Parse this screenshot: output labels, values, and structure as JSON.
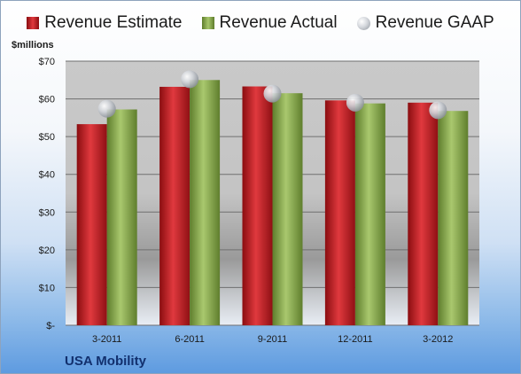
{
  "chart_data": {
    "type": "bar",
    "ylabel": "$millions",
    "categories": [
      "3-2011",
      "6-2011",
      "9-2011",
      "12-2011",
      "3-2012"
    ],
    "series": [
      {
        "name": "Revenue Estimate",
        "kind": "bar",
        "color": "#c8252a",
        "values": [
          53.3,
          63.2,
          63.3,
          59.6,
          59.0
        ]
      },
      {
        "name": "Revenue Actual",
        "kind": "bar",
        "color": "#8bab4f",
        "values": [
          57.2,
          65.0,
          61.5,
          58.8,
          56.8
        ]
      },
      {
        "name": "Revenue GAAP",
        "kind": "marker",
        "color": "#c4c8ce",
        "values": [
          57.4,
          65.2,
          61.4,
          59.0,
          57.0
        ]
      }
    ],
    "ylim": [
      0,
      70
    ],
    "yticks": [
      0,
      10,
      20,
      30,
      40,
      50,
      60,
      70
    ],
    "ytick_labels": [
      "$-",
      "$10",
      "$20",
      "$30",
      "$40",
      "$50",
      "$60",
      "$70"
    ],
    "grid": true,
    "legend_position": "top"
  },
  "company": "USA Mobility"
}
